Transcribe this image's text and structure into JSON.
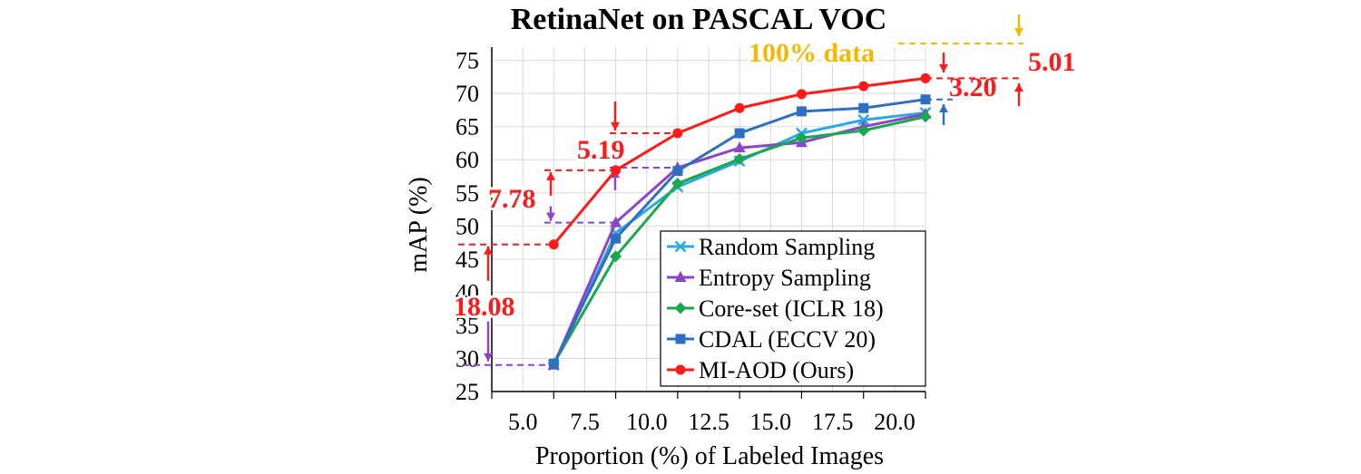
{
  "chart_data": {
    "type": "line",
    "title": "RetinaNet on PASCAL VOC",
    "xlabel": "Proportion (%) of Labeled Images",
    "ylabel": "mAP (%)",
    "x": [
      5.0,
      7.5,
      10.0,
      12.5,
      15.0,
      17.5,
      20.0
    ],
    "x_tick_labels": [
      "5.0",
      "7.5",
      "10.0",
      "12.5",
      "15.0",
      "17.5",
      "20.0"
    ],
    "xlim": [
      2.5,
      20.0
    ],
    "ylim": [
      25,
      77
    ],
    "y_ticks": [
      25,
      30,
      35,
      40,
      45,
      50,
      55,
      60,
      65,
      70,
      75
    ],
    "grid": true,
    "legend_position": "bottom-right",
    "series": [
      {
        "name": "Random Sampling",
        "color": "#29abe2",
        "marker": "x",
        "values": [
          29.0,
          48.9,
          55.9,
          59.8,
          64.0,
          66.0,
          67.1
        ]
      },
      {
        "name": "Entropy Sampling",
        "color": "#8e44c8",
        "marker": "triangle",
        "values": [
          29.0,
          50.5,
          58.8,
          61.8,
          62.6,
          65.0,
          66.9
        ]
      },
      {
        "name": "Core-set (ICLR 18)",
        "color": "#1aa84e",
        "marker": "diamond",
        "values": [
          29.2,
          45.4,
          56.4,
          60.1,
          63.3,
          64.4,
          66.5
        ]
      },
      {
        "name": "CDAL (ECCV 20)",
        "color": "#2f6fc2",
        "marker": "square",
        "values": [
          29.2,
          48.1,
          58.3,
          64.0,
          67.3,
          67.8,
          69.1
        ]
      },
      {
        "name": "MI-AOD (Ours)",
        "color": "#ff1a1a",
        "marker": "circle",
        "values": [
          47.2,
          58.4,
          64.0,
          67.8,
          69.9,
          71.1,
          72.3
        ]
      }
    ],
    "annotations": [
      {
        "text": "18.08",
        "color": "#ff1a1a"
      },
      {
        "text": "7.78",
        "color": "#ff1a1a"
      },
      {
        "text": "5.19",
        "color": "#ff1a1a"
      },
      {
        "text": "3.20",
        "color": "#ff1a1a"
      },
      {
        "text": "5.01",
        "color": "#ff1a1a"
      },
      {
        "text": "100% data",
        "color": "#f5b800"
      }
    ]
  }
}
